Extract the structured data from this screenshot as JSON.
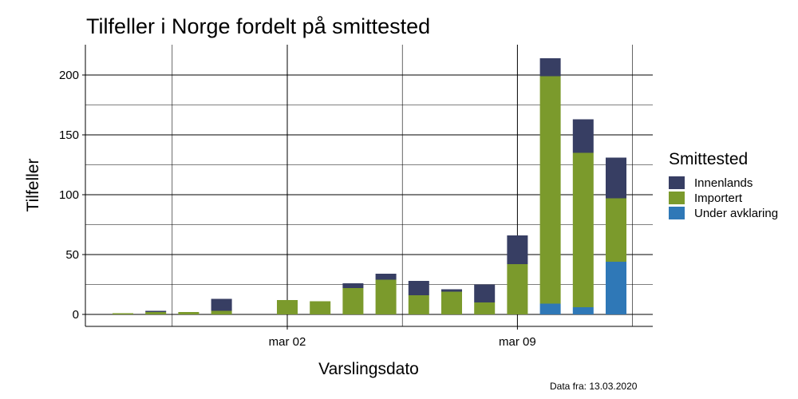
{
  "chart_data": {
    "type": "bar",
    "stacked": true,
    "title": "Tilfeller i Norge fordelt på smittested",
    "xlabel": "Varslingsdato",
    "ylabel": "Tilfeller",
    "ylim": [
      0,
      220
    ],
    "yticks": [
      0,
      50,
      100,
      150,
      200
    ],
    "x_tick_labels": [
      {
        "label": "mar 02",
        "date": "2020-03-02"
      },
      {
        "label": "mar 09",
        "date": "2020-03-09"
      }
    ],
    "dates": [
      "2020-02-26",
      "2020-02-27",
      "2020-02-28",
      "2020-02-29",
      "2020-03-01",
      "2020-03-02",
      "2020-03-03",
      "2020-03-04",
      "2020-03-05",
      "2020-03-06",
      "2020-03-07",
      "2020-03-08",
      "2020-03-09",
      "2020-03-10",
      "2020-03-11",
      "2020-03-12"
    ],
    "legend_title": "Smittested",
    "legend_position": "right",
    "series": [
      {
        "name": "Under avklaring",
        "color": "#2f78b7",
        "values": [
          0,
          0,
          0,
          0,
          0,
          0,
          0,
          0,
          0,
          0,
          0,
          0,
          0,
          9,
          6,
          44
        ]
      },
      {
        "name": "Importert",
        "color": "#7b9a2c",
        "values": [
          1,
          2,
          2,
          3,
          0,
          12,
          11,
          22,
          29,
          16,
          19,
          10,
          42,
          190,
          129,
          53
        ]
      },
      {
        "name": "Innenlands",
        "color": "#373e63",
        "values": [
          0,
          1,
          0,
          10,
          0,
          0,
          0,
          4,
          5,
          12,
          2,
          15,
          24,
          15,
          28,
          34
        ]
      }
    ],
    "legend_order": [
      "Innenlands",
      "Importert",
      "Under avklaring"
    ],
    "grid": true,
    "source_note": "Data fra: 13.03.2020"
  }
}
